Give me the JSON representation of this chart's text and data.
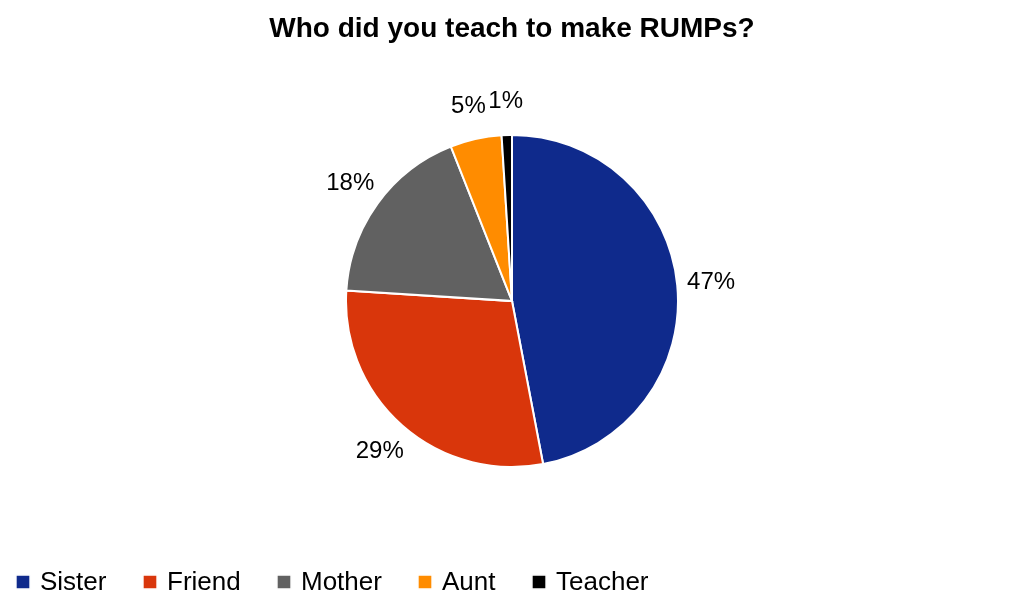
{
  "chart_data": {
    "type": "pie",
    "title": "Who did you teach to make RUMPs?",
    "categories": [
      "Sister",
      "Friend",
      "Mother",
      "Aunt",
      "Teacher"
    ],
    "values": [
      47,
      29,
      18,
      5,
      1
    ],
    "colors": [
      "#0f2a8c",
      "#d9360b",
      "#616161",
      "#ff8c00",
      "#000000"
    ],
    "value_labels": [
      "47%",
      "29%",
      "18%",
      "5%",
      "1%"
    ],
    "legend": "bottom"
  }
}
